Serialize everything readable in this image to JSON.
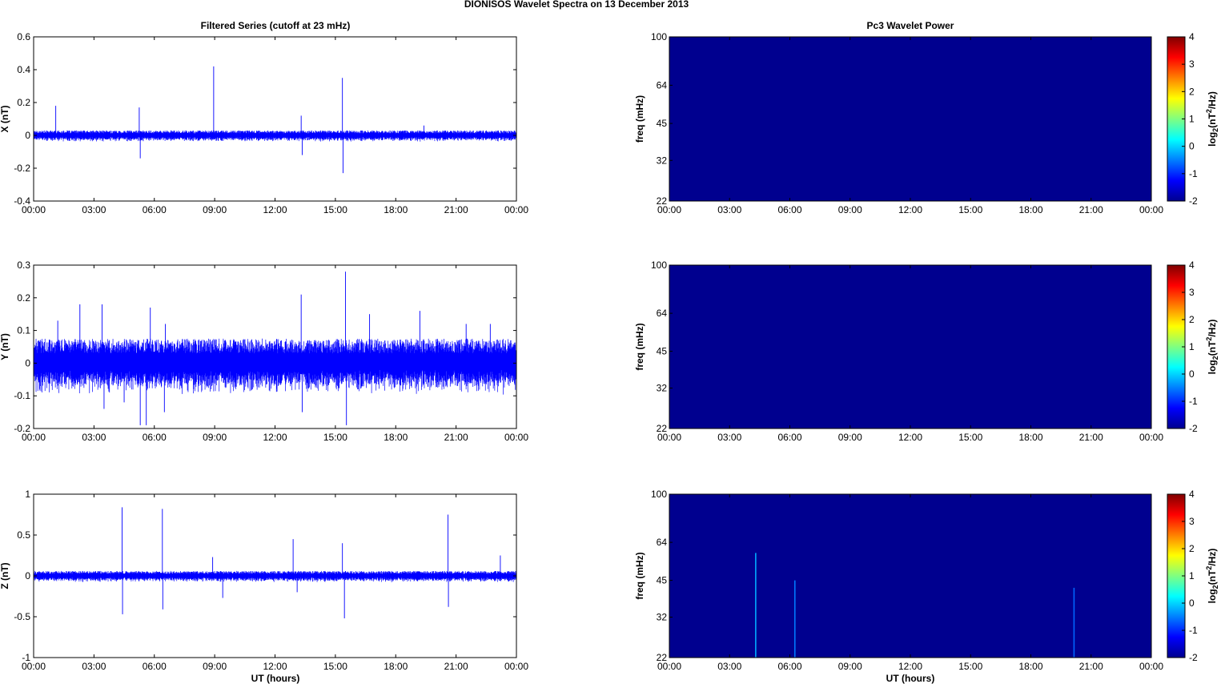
{
  "figure": {
    "suptitle": "DIONISOS Wavelet Spectra on 13 December  2013",
    "left_title": "Filtered Series (cutoff at 23 mHz)",
    "right_title": "Pc3 Wavelet Power",
    "xlabel": "UT (hours)"
  },
  "colors": {
    "trace": "#0000ff",
    "power_background": "#00008f",
    "axis": "#000000"
  },
  "chart_data": [
    {
      "id": "x",
      "type": "line",
      "ylabel": "X (nT)",
      "xlim": [
        0,
        24
      ],
      "ylim": [
        -0.4,
        0.6
      ],
      "x_ticks": [
        "00:00",
        "03:00",
        "06:00",
        "09:00",
        "12:00",
        "15:00",
        "18:00",
        "21:00",
        "00:00"
      ],
      "y_ticks": [
        {
          "value": -0.4,
          "label": "-0.4"
        },
        {
          "value": -0.2,
          "label": "-0.2"
        },
        {
          "value": 0,
          "label": "0"
        },
        {
          "value": 0.2,
          "label": "0.2"
        },
        {
          "value": 0.4,
          "label": "0.4"
        },
        {
          "value": 0.6,
          "label": "0.6"
        }
      ],
      "series": [
        {
          "baseline": 0,
          "noise_amplitude": 0.02,
          "spikes": [
            {
              "x": 1.1,
              "y": 0.18
            },
            {
              "x": 5.25,
              "y": 0.17
            },
            {
              "x": 5.3,
              "y": -0.14
            },
            {
              "x": 8.95,
              "y": 0.42
            },
            {
              "x": 13.3,
              "y": 0.12
            },
            {
              "x": 13.35,
              "y": -0.12
            },
            {
              "x": 15.35,
              "y": 0.35
            },
            {
              "x": 15.38,
              "y": -0.23
            },
            {
              "x": 19.4,
              "y": 0.06
            }
          ]
        }
      ]
    },
    {
      "id": "y",
      "type": "line",
      "ylabel": "Y (nT)",
      "xlim": [
        0,
        24
      ],
      "ylim": [
        -0.2,
        0.3
      ],
      "x_ticks": [
        "00:00",
        "03:00",
        "06:00",
        "09:00",
        "12:00",
        "15:00",
        "18:00",
        "21:00",
        "00:00"
      ],
      "y_ticks": [
        {
          "value": -0.2,
          "label": "-0.2"
        },
        {
          "value": -0.1,
          "label": "-0.1"
        },
        {
          "value": 0,
          "label": "0"
        },
        {
          "value": 0.1,
          "label": "0.1"
        },
        {
          "value": 0.2,
          "label": "0.2"
        },
        {
          "value": 0.3,
          "label": "0.3"
        }
      ],
      "series": [
        {
          "baseline": 0,
          "noise_amplitude": 0.05,
          "spikes": [
            {
              "x": 1.2,
              "y": 0.13
            },
            {
              "x": 2.3,
              "y": 0.18
            },
            {
              "x": 3.4,
              "y": 0.18
            },
            {
              "x": 3.5,
              "y": -0.14
            },
            {
              "x": 4.5,
              "y": -0.12
            },
            {
              "x": 5.3,
              "y": -0.19
            },
            {
              "x": 5.6,
              "y": -0.19
            },
            {
              "x": 5.8,
              "y": 0.17
            },
            {
              "x": 6.5,
              "y": -0.15
            },
            {
              "x": 6.55,
              "y": 0.12
            },
            {
              "x": 13.3,
              "y": 0.21
            },
            {
              "x": 13.35,
              "y": -0.15
            },
            {
              "x": 15.5,
              "y": 0.28
            },
            {
              "x": 15.55,
              "y": -0.19
            },
            {
              "x": 16.7,
              "y": 0.15
            },
            {
              "x": 19.2,
              "y": 0.16
            },
            {
              "x": 21.5,
              "y": 0.12
            },
            {
              "x": 22.7,
              "y": 0.12
            }
          ]
        }
      ]
    },
    {
      "id": "z",
      "type": "line",
      "ylabel": "Z (nT)",
      "xlim": [
        0,
        24
      ],
      "ylim": [
        -1,
        1
      ],
      "x_ticks": [
        "00:00",
        "03:00",
        "06:00",
        "09:00",
        "12:00",
        "15:00",
        "18:00",
        "21:00",
        "00:00"
      ],
      "y_ticks": [
        {
          "value": -1,
          "label": "-1"
        },
        {
          "value": -0.5,
          "label": "-0.5"
        },
        {
          "value": 0,
          "label": "0"
        },
        {
          "value": 0.5,
          "label": "0.5"
        },
        {
          "value": 1,
          "label": "1"
        }
      ],
      "series": [
        {
          "baseline": 0,
          "noise_amplitude": 0.04,
          "spikes": [
            {
              "x": 4.4,
              "y": 0.84
            },
            {
              "x": 4.42,
              "y": -0.47
            },
            {
              "x": 6.4,
              "y": 0.82
            },
            {
              "x": 6.42,
              "y": -0.41
            },
            {
              "x": 8.9,
              "y": 0.23
            },
            {
              "x": 9.4,
              "y": -0.27
            },
            {
              "x": 12.9,
              "y": 0.45
            },
            {
              "x": 13.1,
              "y": -0.2
            },
            {
              "x": 15.35,
              "y": 0.4
            },
            {
              "x": 15.45,
              "y": -0.52
            },
            {
              "x": 20.6,
              "y": 0.75
            },
            {
              "x": 20.62,
              "y": -0.38
            },
            {
              "x": 23.2,
              "y": 0.25
            }
          ]
        }
      ]
    },
    {
      "id": "px",
      "type": "heatmap",
      "ylabel": "freq (mHz)",
      "xlim": [
        0,
        24
      ],
      "ylim": [
        22,
        100
      ],
      "yscale": "log",
      "x_ticks": [
        "00:00",
        "03:00",
        "06:00",
        "09:00",
        "12:00",
        "15:00",
        "18:00",
        "21:00",
        "00:00"
      ],
      "y_ticks": [
        {
          "value": 22,
          "label": "22"
        },
        {
          "value": 32,
          "label": "32"
        },
        {
          "value": 45,
          "label": "45"
        },
        {
          "value": 64,
          "label": "64"
        },
        {
          "value": 100,
          "label": "100"
        }
      ],
      "background_level": -2,
      "streaks": [],
      "colorbar": {
        "label": "log2(nT2/Hz)",
        "range": [
          -2,
          4
        ],
        "ticks": [
          "-2",
          "-1",
          "0",
          "1",
          "2",
          "3",
          "4"
        ]
      }
    },
    {
      "id": "py",
      "type": "heatmap",
      "ylabel": "freq (mHz)",
      "xlim": [
        0,
        24
      ],
      "ylim": [
        22,
        100
      ],
      "yscale": "log",
      "x_ticks": [
        "00:00",
        "03:00",
        "06:00",
        "09:00",
        "12:00",
        "15:00",
        "18:00",
        "21:00",
        "00:00"
      ],
      "y_ticks": [
        {
          "value": 22,
          "label": "22"
        },
        {
          "value": 32,
          "label": "32"
        },
        {
          "value": 45,
          "label": "45"
        },
        {
          "value": 64,
          "label": "64"
        },
        {
          "value": 100,
          "label": "100"
        }
      ],
      "background_level": -2,
      "streaks": [],
      "colorbar": {
        "label": "log2(nT2/Hz)",
        "range": [
          -2,
          4
        ],
        "ticks": [
          "-2",
          "-1",
          "0",
          "1",
          "2",
          "3",
          "4"
        ]
      }
    },
    {
      "id": "pz",
      "type": "heatmap",
      "ylabel": "freq (mHz)",
      "xlim": [
        0,
        24
      ],
      "ylim": [
        22,
        100
      ],
      "yscale": "log",
      "x_ticks": [
        "00:00",
        "03:00",
        "06:00",
        "09:00",
        "12:00",
        "15:00",
        "18:00",
        "21:00",
        "00:00"
      ],
      "y_ticks": [
        {
          "value": 22,
          "label": "22"
        },
        {
          "value": 32,
          "label": "32"
        },
        {
          "value": 45,
          "label": "45"
        },
        {
          "value": 64,
          "label": "64"
        },
        {
          "value": 100,
          "label": "100"
        }
      ],
      "background_level": -2,
      "streaks": [
        {
          "x": 4.3,
          "f_top": 58,
          "color": "#00aaff"
        },
        {
          "x": 6.25,
          "f_top": 45,
          "color": "#0077ff"
        },
        {
          "x": 20.15,
          "f_top": 42,
          "color": "#0066ff"
        }
      ],
      "colorbar": {
        "label": "log2(nT2/Hz)",
        "range": [
          -2,
          4
        ],
        "ticks": [
          "-2",
          "-1",
          "0",
          "1",
          "2",
          "3",
          "4"
        ]
      }
    }
  ]
}
